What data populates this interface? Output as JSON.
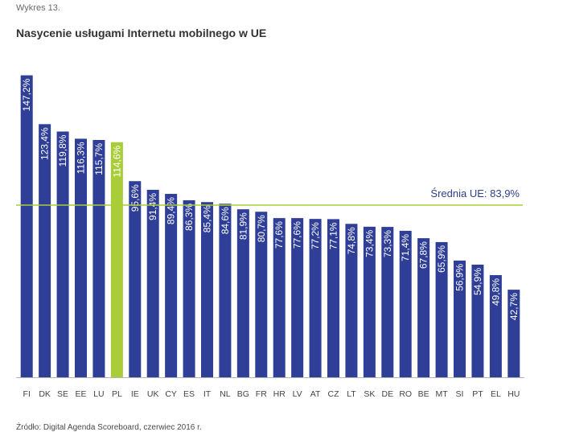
{
  "figure_label": "Wykres 13.",
  "source": "Źródło: Digital Agenda Scoreboard, czerwiec 2016 r.",
  "colors": {
    "bar": "#2f3e96",
    "highlight": "#a9cd39",
    "average_line": "#a9cd39",
    "average_text": "#2e3e8e",
    "axis": "#b5b5b5"
  },
  "chart_data": {
    "type": "bar",
    "title": "Nasycenie usługami Internetu mobilnego w UE",
    "xlabel": "",
    "ylabel": "",
    "ylim": [
      0,
      150
    ],
    "grid": false,
    "highlight_category": "PL",
    "categories": [
      "FI",
      "DK",
      "SE",
      "EE",
      "LU",
      "PL",
      "IE",
      "UK",
      "CY",
      "ES",
      "IT",
      "NL",
      "BG",
      "FR",
      "HR",
      "LV",
      "AT",
      "CZ",
      "LT",
      "SK",
      "DE",
      "RO",
      "BE",
      "MT",
      "SI",
      "PT",
      "EL",
      "HU"
    ],
    "values": [
      147.2,
      123.4,
      119.8,
      116.3,
      115.7,
      114.6,
      95.6,
      91.4,
      89.4,
      86.3,
      85.4,
      84.6,
      81.9,
      80.7,
      77.6,
      77.6,
      77.2,
      77.1,
      74.8,
      73.4,
      73.3,
      71.4,
      67.8,
      65.9,
      56.9,
      54.9,
      49.8,
      42.7
    ],
    "value_labels": [
      "147,2%",
      "123,4%",
      "119,8%",
      "116,3%",
      "115,7%",
      "114,6%",
      "95,6%",
      "91,4%",
      "89,4%",
      "86,3%",
      "85,4%",
      "84,6%",
      "81,9%",
      "80,7%",
      "77,6%",
      "77,6%",
      "77,2%",
      "77,1%",
      "74,8%",
      "73,4%",
      "73,3%",
      "71,4%",
      "67,8%",
      "65,9%",
      "56,9%",
      "54,9%",
      "49,8%",
      "42,7%"
    ],
    "average": {
      "value": 83.9,
      "label": "Średnia UE: 83,9%"
    }
  }
}
